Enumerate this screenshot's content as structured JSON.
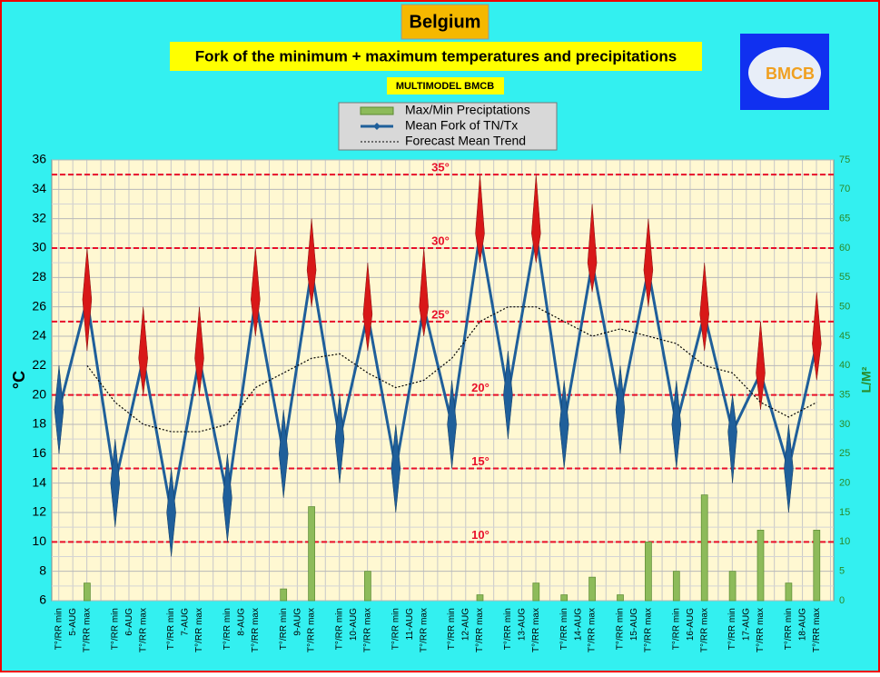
{
  "chart_data": {
    "type": "line",
    "title": "Belgium",
    "subtitle": "Fork of the minimum + maximum temperatures and precipitations",
    "model_label": "MULTIMODEL BMCB",
    "logo_text": "BMCB",
    "ylabel": "°C",
    "y2label": "L/M²",
    "categories": [
      "T°/RR min",
      "T°/RR max",
      "T°/RR min",
      "T°/RR max",
      "T°/RR min",
      "T°/RR max",
      "T°/RR min",
      "T°/RR max",
      "T°/RR min",
      "T°/RR max",
      "T°/RR min",
      "T°/RR max",
      "T°/RR min",
      "T°/RR max",
      "T°/RR min",
      "T°/RR max",
      "T°/RR min",
      "T°/RR max",
      "T°/RR min",
      "T°/RR max",
      "T°/RR min",
      "T°/RR max",
      "T°/RR min",
      "T°/RR max",
      "T°/RR min",
      "T°/RR max",
      "T°/RR min",
      "T°/RR max"
    ],
    "dates": [
      "5-AUG",
      "6-AUG",
      "7-AUG",
      "8-AUG",
      "9-AUG",
      "10-AUG",
      "11-AUG",
      "12-AUG",
      "13-AUG",
      "14-AUG",
      "15-AUG",
      "16-AUG",
      "17-AUG",
      "18-AUG"
    ],
    "ylim": [
      6,
      36
    ],
    "yticks": [
      6,
      8,
      10,
      12,
      14,
      16,
      18,
      20,
      22,
      24,
      26,
      28,
      30,
      32,
      34,
      36
    ],
    "y2lim": [
      0,
      75
    ],
    "y2ticks": [
      0,
      5,
      10,
      15,
      20,
      25,
      30,
      35,
      40,
      45,
      50,
      55,
      60,
      65,
      70,
      75
    ],
    "grid": true,
    "references": [
      {
        "value": 35,
        "label": "35°"
      },
      {
        "value": 30,
        "label": "30°"
      },
      {
        "value": 25,
        "label": "25°"
      },
      {
        "value": 20,
        "label": "20°"
      },
      {
        "value": 15,
        "label": "15°"
      },
      {
        "value": 10,
        "label": "10°"
      }
    ],
    "reference_color": "#e8102a",
    "series": [
      {
        "name": "Max/Min Preciptations",
        "type": "bar",
        "axis": "y2",
        "color": "#8dbb5a",
        "values": [
          null,
          3,
          null,
          null,
          null,
          null,
          null,
          null,
          2,
          16,
          null,
          5,
          null,
          null,
          null,
          1,
          null,
          3,
          1,
          4,
          1,
          10,
          5,
          18,
          5,
          12,
          3,
          12
        ]
      },
      {
        "name": "Mean Fork of TN/Tx",
        "type": "line",
        "color": "#1f5f9a",
        "max_color": "#d81818",
        "values": [
          19,
          26.5,
          14,
          22.5,
          12,
          22.5,
          13,
          26.5,
          16,
          28.5,
          17,
          25.5,
          15,
          26,
          18,
          31,
          20,
          31,
          18,
          29,
          19,
          28.5,
          18,
          25.5,
          17.5,
          21.5,
          15,
          23.5
        ],
        "lows": [
          16,
          23,
          11,
          20,
          9,
          20,
          10,
          24,
          13,
          26,
          14,
          23,
          12,
          24,
          15,
          29,
          17,
          29,
          15,
          27,
          16,
          26,
          15,
          23,
          14,
          19,
          12,
          21
        ],
        "highs": [
          22,
          30,
          17,
          26,
          15,
          26,
          16,
          30,
          19,
          32,
          20,
          29,
          18,
          30,
          21,
          35,
          23,
          35,
          21,
          33,
          22,
          32,
          21,
          29,
          20,
          25,
          18,
          27
        ]
      },
      {
        "name": "Forecast Mean Trend",
        "type": "line",
        "color": "#000000",
        "values": [
          null,
          22,
          19.5,
          18,
          17.5,
          17.5,
          18,
          20.5,
          21.5,
          22.5,
          22.8,
          21.5,
          20.5,
          21,
          22.5,
          25,
          26,
          26,
          25,
          24,
          24.5,
          24,
          23.5,
          22,
          21.5,
          19.5,
          18.5,
          19.5
        ]
      }
    ]
  }
}
